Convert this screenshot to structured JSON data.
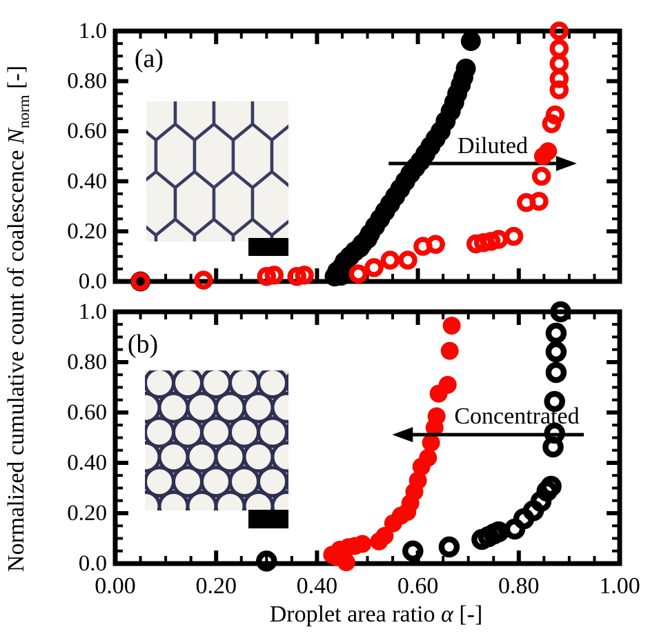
{
  "axes": {
    "xlabel": {
      "prefix": "Droplet area ratio ",
      "symbol": "α",
      "suffix": " [-]"
    },
    "ylabel": {
      "prefix": "Normalized cumulative count of coalescence ",
      "symbol": "N",
      "subscript": "norm",
      "suffix": " [-]"
    }
  },
  "colors": {
    "red": "#f80800",
    "black": "#000000",
    "inset_membrane": "#3a3c64",
    "inset_droplet": "#f3f2ec",
    "inset_background": "#e9e8e0",
    "scale_bar": "#000000"
  },
  "chart_data": [
    {
      "type": "scatter",
      "panel_label": "(a)",
      "xlim": [
        0,
        1
      ],
      "ylim": [
        0,
        1
      ],
      "grid": false,
      "legend": "none",
      "x_major_ticks": [
        0,
        0.2,
        0.4,
        0.6,
        0.8,
        1.0
      ],
      "y_major_ticks": [
        0,
        0.2,
        0.4,
        0.6,
        0.8,
        1.0
      ],
      "y_ticklabels": [
        "0.0",
        "0.20",
        "0.40",
        "0.60",
        "0.80",
        "1.0"
      ],
      "minor_tick_step": 0.05,
      "series": [
        {
          "name": "black-filled",
          "marker": "filled",
          "color": "#000000",
          "points": [
            [
              0.05,
              0
            ],
            [
              0.435,
              0.02
            ],
            [
              0.44,
              0.04
            ],
            [
              0.45,
              0.06
            ],
            [
              0.455,
              0.08
            ],
            [
              0.465,
              0.1
            ],
            [
              0.475,
              0.12
            ],
            [
              0.485,
              0.135
            ],
            [
              0.49,
              0.15
            ],
            [
              0.5,
              0.17
            ],
            [
              0.505,
              0.19
            ],
            [
              0.515,
              0.22
            ],
            [
              0.525,
              0.25
            ],
            [
              0.535,
              0.28
            ],
            [
              0.545,
              0.31
            ],
            [
              0.555,
              0.34
            ],
            [
              0.565,
              0.37
            ],
            [
              0.575,
              0.4
            ],
            [
              0.585,
              0.43
            ],
            [
              0.595,
              0.455
            ],
            [
              0.605,
              0.48
            ],
            [
              0.615,
              0.51
            ],
            [
              0.625,
              0.54
            ],
            [
              0.635,
              0.57
            ],
            [
              0.645,
              0.6
            ],
            [
              0.655,
              0.64
            ],
            [
              0.665,
              0.68
            ],
            [
              0.672,
              0.715
            ],
            [
              0.678,
              0.75
            ],
            [
              0.685,
              0.785
            ],
            [
              0.69,
              0.815
            ],
            [
              0.695,
              0.85
            ],
            [
              0.705,
              0.96
            ]
          ]
        },
        {
          "name": "black-open",
          "marker": "open",
          "color": "#000000",
          "points": [
            [
              0.447,
              0.025
            ]
          ]
        },
        {
          "name": "red-open",
          "marker": "open",
          "color": "#f80800",
          "points": [
            [
              0.05,
              0
            ],
            [
              0.175,
              0.005
            ],
            [
              0.3,
              0.02
            ],
            [
              0.315,
              0.025
            ],
            [
              0.36,
              0.02
            ],
            [
              0.375,
              0.025
            ],
            [
              0.482,
              0.03
            ],
            [
              0.513,
              0.055
            ],
            [
              0.545,
              0.085
            ],
            [
              0.58,
              0.085
            ],
            [
              0.61,
              0.14
            ],
            [
              0.635,
              0.148
            ],
            [
              0.715,
              0.15
            ],
            [
              0.73,
              0.155
            ],
            [
              0.745,
              0.16
            ],
            [
              0.76,
              0.168
            ],
            [
              0.79,
              0.18
            ],
            [
              0.815,
              0.315
            ],
            [
              0.84,
              0.32
            ],
            [
              0.845,
              0.42
            ],
            [
              0.865,
              0.63
            ],
            [
              0.872,
              0.665
            ],
            [
              0.88,
              0.765
            ],
            [
              0.88,
              0.81
            ],
            [
              0.88,
              0.87
            ],
            [
              0.88,
              0.93
            ],
            [
              0.88,
              1.0
            ]
          ]
        },
        {
          "name": "red-filled",
          "marker": "filled",
          "color": "#f80800",
          "above_arrow": true,
          "points": [
            [
              0.848,
              0.5
            ],
            [
              0.858,
              0.52
            ]
          ]
        }
      ],
      "annotation": {
        "text": "Diluted",
        "direction": "right",
        "arrow_x_start": 0.542,
        "arrow_x_end": 0.915,
        "arrow_y": 0.471
      },
      "inset": {
        "type": "micrograph",
        "content": "close-packed polygonal honeycomb droplets",
        "scale_bar": true
      }
    },
    {
      "type": "scatter",
      "panel_label": "(b)",
      "xlim": [
        0,
        1
      ],
      "ylim": [
        0,
        1
      ],
      "grid": false,
      "legend": "none",
      "x_major_ticks": [
        0,
        0.2,
        0.4,
        0.6,
        0.8,
        1.0
      ],
      "x_ticklabels": [
        "0.00",
        "0.20",
        "0.40",
        "0.60",
        "0.80",
        "1.00"
      ],
      "y_major_ticks": [
        0,
        0.2,
        0.4,
        0.6,
        0.8,
        1.0
      ],
      "y_ticklabels": [
        "0.0",
        "0.20",
        "0.40",
        "0.60",
        "0.80",
        "1.0"
      ],
      "minor_tick_step": 0.05,
      "series": [
        {
          "name": "red-filled",
          "marker": "filled",
          "color": "#f80800",
          "points": [
            [
              0.43,
              0.035
            ],
            [
              0.438,
              0.027
            ],
            [
              0.445,
              0.055
            ],
            [
              0.458,
              0.005
            ],
            [
              0.462,
              0.065
            ],
            [
              0.475,
              0.07
            ],
            [
              0.49,
              0.078
            ],
            [
              0.523,
              0.088
            ],
            [
              0.534,
              0.11
            ],
            [
              0.551,
              0.16
            ],
            [
              0.566,
              0.19
            ],
            [
              0.579,
              0.205
            ],
            [
              0.585,
              0.24
            ],
            [
              0.593,
              0.285
            ],
            [
              0.6,
              0.33
            ],
            [
              0.607,
              0.385
            ],
            [
              0.62,
              0.42
            ],
            [
              0.626,
              0.48
            ],
            [
              0.633,
              0.54
            ],
            [
              0.637,
              0.585
            ],
            [
              0.641,
              0.675
            ],
            [
              0.659,
              0.71
            ],
            [
              0.663,
              0.845
            ],
            [
              0.667,
              0.945
            ]
          ]
        },
        {
          "name": "black-open",
          "marker": "open",
          "color": "#000000",
          "above_arrow": true,
          "points": [
            [
              0.3,
              0.01
            ],
            [
              0.59,
              0.05
            ],
            [
              0.662,
              0.066
            ],
            [
              0.727,
              0.096
            ],
            [
              0.74,
              0.107
            ],
            [
              0.751,
              0.118
            ],
            [
              0.76,
              0.126
            ],
            [
              0.792,
              0.137
            ],
            [
              0.81,
              0.178
            ],
            [
              0.829,
              0.21
            ],
            [
              0.844,
              0.247
            ],
            [
              0.856,
              0.288
            ],
            [
              0.864,
              0.307
            ],
            [
              0.868,
              0.463
            ],
            [
              0.871,
              0.518
            ],
            [
              0.871,
              0.644
            ],
            [
              0.874,
              0.759
            ],
            [
              0.874,
              0.841
            ],
            [
              0.874,
              0.915
            ],
            [
              0.883,
              1.0
            ]
          ]
        }
      ],
      "annotation": {
        "text": "Concentrated",
        "direction": "left",
        "arrow_x_start": 0.929,
        "arrow_x_end": 0.549,
        "arrow_y": 0.512
      },
      "inset": {
        "type": "micrograph",
        "content": "close-packed circular droplets",
        "scale_bar": true
      }
    }
  ]
}
